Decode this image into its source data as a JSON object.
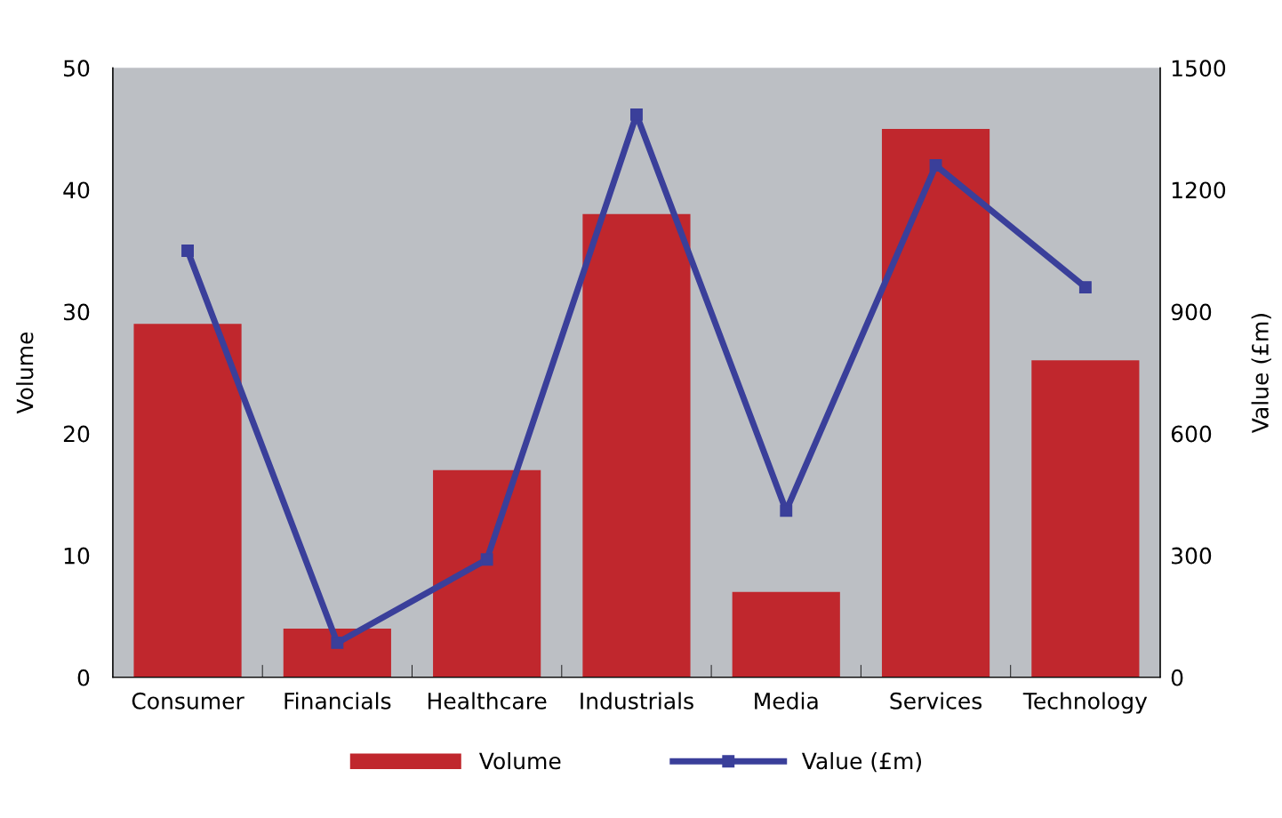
{
  "chart_data": {
    "type": "bar",
    "categories": [
      "Consumer",
      "Financials",
      "Healthcare",
      "Industrials",
      "Media",
      "Services",
      "Technology"
    ],
    "ylabel": "Volume",
    "y2label": "Value (£m)",
    "series": [
      {
        "name": "Volume",
        "color": "#c0272d",
        "values": [
          29,
          4,
          17,
          38,
          7,
          45,
          26
        ]
      },
      {
        "name": "Value (£m)",
        "type": "line",
        "axis": "y2",
        "color": "#3a3f9a",
        "values": [
          1050,
          85,
          290,
          1385,
          410,
          1260,
          960
        ]
      }
    ],
    "ylim": [
      0,
      50
    ],
    "yticks": [
      0,
      10,
      20,
      30,
      40,
      50
    ],
    "y2lim": [
      0,
      1500
    ],
    "y2ticks": [
      0,
      300,
      600,
      900,
      1200,
      1500
    ],
    "marker": "square",
    "line_style": "solid",
    "grid": false,
    "legend": "bottom"
  }
}
